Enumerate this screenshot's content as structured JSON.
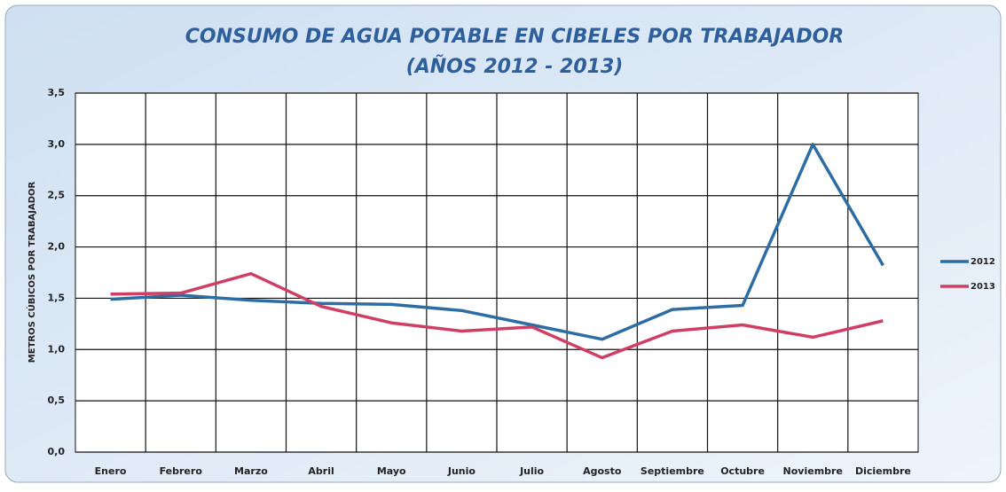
{
  "chart_data": {
    "type": "line",
    "title": "CONSUMO DE AGUA POTABLE EN CIBELES POR TRABAJADOR",
    "subtitle": "(AÑOS 2012 - 2013)",
    "y_label": "METROS CÚBICOS POR TRABAJADOR",
    "categories": [
      "Enero",
      "Febrero",
      "Marzo",
      "Abril",
      "Mayo",
      "Junio",
      "Julio",
      "Agosto",
      "Septiembre",
      "Octubre",
      "Noviembre",
      "Diciembre"
    ],
    "series": [
      {
        "name": "2012",
        "color": "#2e6da4",
        "values": [
          1.49,
          1.53,
          1.48,
          1.45,
          1.44,
          1.38,
          1.24,
          1.1,
          1.39,
          1.43,
          3.0,
          1.82
        ]
      },
      {
        "name": "2013",
        "color": "#cf3f63",
        "values": [
          1.54,
          1.55,
          1.74,
          1.42,
          1.26,
          1.18,
          1.22,
          0.92,
          1.18,
          1.24,
          1.12,
          1.28
        ]
      }
    ],
    "ylim": [
      0,
      3.5
    ],
    "yticks": [
      {
        "value": 0,
        "label": "0,0"
      },
      {
        "value": 0.5,
        "label": "0,5"
      },
      {
        "value": 1,
        "label": "1,0"
      },
      {
        "value": 1.5,
        "label": "1,5"
      },
      {
        "value": 2,
        "label": "2,0"
      },
      {
        "value": 2.5,
        "label": "2,5"
      },
      {
        "value": 3,
        "label": "3,0"
      },
      {
        "value": 3.5,
        "label": "3,5"
      }
    ],
    "grid": true,
    "legend": "right"
  }
}
